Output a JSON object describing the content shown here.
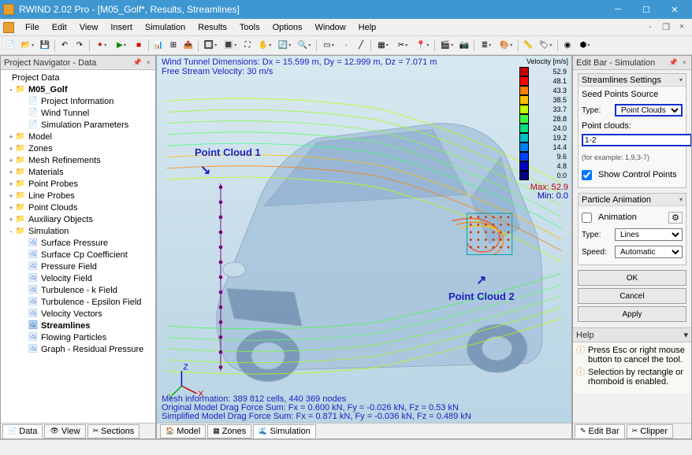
{
  "window": {
    "title": "RWIND 2.02 Pro - [M05_Golf*, Results, Streamlines]"
  },
  "menu": {
    "file": "File",
    "edit": "Edit",
    "view": "View",
    "insert": "Insert",
    "simulation": "Simulation",
    "results": "Results",
    "tools": "Tools",
    "options": "Options",
    "window": "Window",
    "help": "Help"
  },
  "navigator": {
    "title": "Project Navigator - Data",
    "root": "Project Data",
    "tree": [
      {
        "l": "M05_Golf",
        "d": 0,
        "exp": "-",
        "ico": "📁",
        "b": true
      },
      {
        "l": "Project Information",
        "d": 1,
        "ico": "📄"
      },
      {
        "l": "Wind Tunnel",
        "d": 1,
        "ico": "📄"
      },
      {
        "l": "Simulation Parameters",
        "d": 1,
        "ico": "📄"
      },
      {
        "l": "Model",
        "d": 0,
        "exp": "+",
        "ico": "📁"
      },
      {
        "l": "Zones",
        "d": 0,
        "exp": "+",
        "ico": "📁"
      },
      {
        "l": "Mesh Refinements",
        "d": 0,
        "exp": "+",
        "ico": "📁"
      },
      {
        "l": "Materials",
        "d": 0,
        "exp": "+",
        "ico": "📁"
      },
      {
        "l": "Point Probes",
        "d": 0,
        "exp": "+",
        "ico": "📁"
      },
      {
        "l": "Line Probes",
        "d": 0,
        "exp": "+",
        "ico": "📁"
      },
      {
        "l": "Point Clouds",
        "d": 0,
        "exp": "+",
        "ico": "📁"
      },
      {
        "l": "Auxiliary Objects",
        "d": 0,
        "exp": "+",
        "ico": "📁"
      },
      {
        "l": "Simulation",
        "d": 0,
        "exp": "-",
        "ico": "📁"
      },
      {
        "l": "Surface Pressure",
        "d": 1,
        "ico": "🖼"
      },
      {
        "l": "Surface Cp Coefficient",
        "d": 1,
        "ico": "🖼"
      },
      {
        "l": "Pressure Field",
        "d": 1,
        "ico": "🖼"
      },
      {
        "l": "Velocity Field",
        "d": 1,
        "ico": "🖼"
      },
      {
        "l": "Turbulence - k Field",
        "d": 1,
        "ico": "🖼"
      },
      {
        "l": "Turbulence - Epsilon Field",
        "d": 1,
        "ico": "🖼"
      },
      {
        "l": "Velocity Vectors",
        "d": 1,
        "ico": "🖼"
      },
      {
        "l": "Streamlines",
        "d": 1,
        "ico": "🖼",
        "b": true
      },
      {
        "l": "Flowing Particles",
        "d": 1,
        "ico": "🖼"
      },
      {
        "l": "Graph - Residual Pressure",
        "d": 1,
        "ico": "🖼"
      }
    ],
    "bottom_tabs": {
      "data": "Data",
      "view": "View",
      "sections": "Sections"
    }
  },
  "viewport": {
    "info_line1": "Wind Tunnel Dimensions: Dx = 15.599 m, Dy = 12.999 m, Dz = 7.071 m",
    "info_line2": "Free Stream Velocity: 30 m/s",
    "label1": "Point Cloud 1",
    "label2": "Point Cloud 2",
    "footer1": "Mesh information: 389 812 cells, 440 369 nodes",
    "footer2": "Original Model Drag Force Sum: Fx = 0.600 kN, Fy = -0.026 kN, Fz = 0.53 kN",
    "footer3": "Simplified Model Drag Force Sum: Fx = 0.871 kN, Fy = -0.036 kN, Fz = 0.489 kN",
    "tabs": {
      "model": "Model",
      "zones": "Zones",
      "simulation": "Simulation"
    },
    "legend": {
      "title": "Velocity [m/s]",
      "rows": [
        {
          "c": "#c00000",
          "v": "52.9"
        },
        {
          "c": "#ff0000",
          "v": "48.1"
        },
        {
          "c": "#ff8000",
          "v": "43.3"
        },
        {
          "c": "#ffc000",
          "v": "38.5"
        },
        {
          "c": "#c0ff00",
          "v": "33.7"
        },
        {
          "c": "#40ff40",
          "v": "28.8"
        },
        {
          "c": "#00e080",
          "v": "24.0"
        },
        {
          "c": "#00c0c0",
          "v": "19.2"
        },
        {
          "c": "#0080ff",
          "v": "14.4"
        },
        {
          "c": "#0040ff",
          "v": "9.6"
        },
        {
          "c": "#0000c0",
          "v": "4.8"
        },
        {
          "c": "#000080",
          "v": "0.0"
        }
      ],
      "max": "Max: 52.9",
      "min": "Min:   0.0"
    },
    "car_color": "#8fb4d4",
    "streamline_colors": [
      "#c0ff00",
      "#40ff40",
      "#ffc000",
      "#ff8000",
      "#00c0c0"
    ]
  },
  "editbar": {
    "title": "Edit Bar - Simulation",
    "section": "Streamlines Settings",
    "seed_src": "Seed Points Source",
    "type_lbl": "Type:",
    "type_val": "Point Clouds",
    "pc_lbl": "Point clouds:",
    "pc_val": "1-2",
    "pc_hint": "(for example: 1,9,3-7)",
    "show_cp": "Show Control Points",
    "anim_section": "Particle Animation",
    "anim_chk": "Animation",
    "anim_type_lbl": "Type:",
    "anim_type_val": "Lines",
    "speed_lbl": "Speed:",
    "speed_val": "Automatic",
    "ok": "OK",
    "cancel": "Cancel",
    "apply": "Apply",
    "help_hdr": "Help",
    "help1": "Press Esc or right mouse button to cancel the tool.",
    "help2": "Selection by rectangle or rhomboid is enabled.",
    "right_tabs": {
      "editbar": "Edit Bar",
      "clipper": "Clipper"
    }
  }
}
